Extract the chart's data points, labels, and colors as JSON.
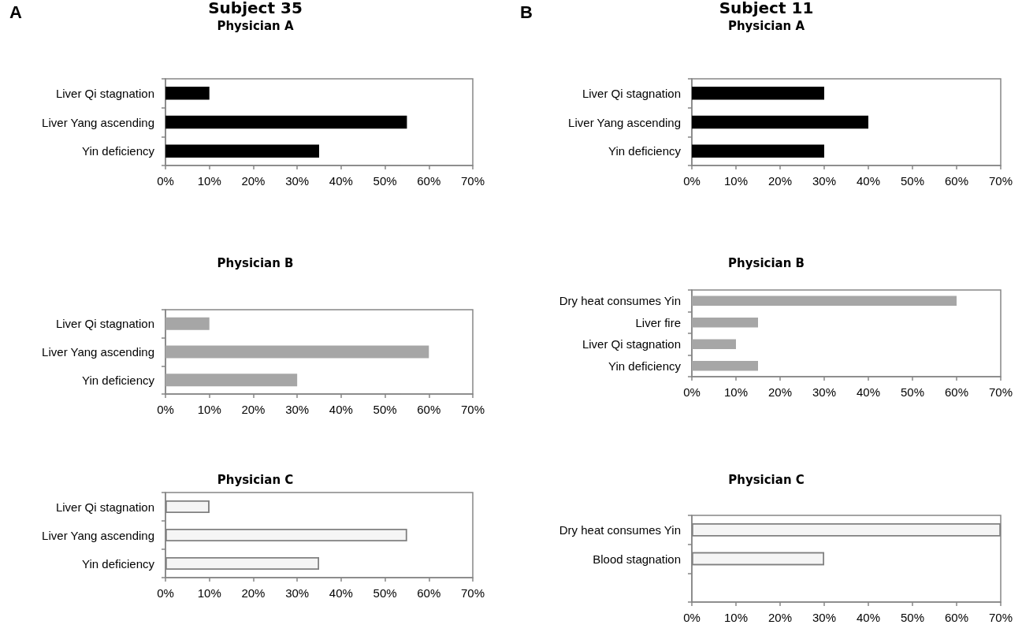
{
  "chart_data": [
    {
      "type": "bar",
      "orientation": "horizontal",
      "title": "Physician A",
      "annotations": [
        "A",
        "Subject 35"
      ],
      "categories": [
        "Liver Qi stagnation",
        "Liver Yang ascending",
        "Yin deficiency"
      ],
      "values": [
        10,
        55,
        35
      ],
      "color": "#000000",
      "xlim": [
        0,
        70
      ],
      "xticks": [
        {
          "value": 0,
          "label": "0%"
        },
        {
          "value": 10,
          "label": "10%"
        },
        {
          "value": 20,
          "label": "20%"
        },
        {
          "value": 30,
          "label": "30%"
        },
        {
          "value": 40,
          "label": "40%"
        },
        {
          "value": 50,
          "label": "50%"
        },
        {
          "value": 60,
          "label": "60%"
        },
        {
          "value": 70,
          "label": "70%"
        }
      ],
      "grid": false
    },
    {
      "type": "bar",
      "orientation": "horizontal",
      "title": "Physician A",
      "annotations": [
        "B",
        "Subject 11"
      ],
      "categories": [
        "Liver Qi stagnation",
        "Liver Yang ascending",
        "Yin deficiency"
      ],
      "values": [
        30,
        40,
        30
      ],
      "color": "#000000",
      "xlim": [
        0,
        70
      ],
      "xticks": [
        {
          "value": 0,
          "label": "0%"
        },
        {
          "value": 10,
          "label": "10%"
        },
        {
          "value": 20,
          "label": "20%"
        },
        {
          "value": 30,
          "label": "30%"
        },
        {
          "value": 40,
          "label": "40%"
        },
        {
          "value": 50,
          "label": "50%"
        },
        {
          "value": 60,
          "label": "60%"
        },
        {
          "value": 70,
          "label": "70%"
        }
      ],
      "grid": false
    },
    {
      "type": "bar",
      "orientation": "horizontal",
      "title": "Physician B",
      "categories": [
        "Liver Qi stagnation",
        "Liver Yang ascending",
        "Yin deficiency"
      ],
      "values": [
        10,
        60,
        30
      ],
      "color": "#a6a6a6",
      "xlim": [
        0,
        70
      ],
      "xticks": [
        {
          "value": 0,
          "label": "0%"
        },
        {
          "value": 10,
          "label": "10%"
        },
        {
          "value": 20,
          "label": "20%"
        },
        {
          "value": 30,
          "label": "30%"
        },
        {
          "value": 40,
          "label": "40%"
        },
        {
          "value": 50,
          "label": "50%"
        },
        {
          "value": 60,
          "label": "60%"
        },
        {
          "value": 70,
          "label": "70%"
        }
      ],
      "grid": false
    },
    {
      "type": "bar",
      "orientation": "horizontal",
      "title": "Physician B",
      "categories": [
        "Dry heat consumes Yin",
        "Liver fire",
        "Liver Qi stagnation",
        "Yin deficiency"
      ],
      "values": [
        60,
        15,
        10,
        15
      ],
      "color": "#a6a6a6",
      "xlim": [
        0,
        70
      ],
      "xticks": [
        {
          "value": 0,
          "label": "0%"
        },
        {
          "value": 10,
          "label": "10%"
        },
        {
          "value": 20,
          "label": "20%"
        },
        {
          "value": 30,
          "label": "30%"
        },
        {
          "value": 40,
          "label": "40%"
        },
        {
          "value": 50,
          "label": "50%"
        },
        {
          "value": 60,
          "label": "60%"
        },
        {
          "value": 70,
          "label": "70%"
        }
      ],
      "grid": false
    },
    {
      "type": "bar",
      "orientation": "horizontal",
      "title": "Physician C",
      "categories": [
        "Liver Qi stagnation",
        "Liver Yang ascending",
        "Yin deficiency"
      ],
      "values": [
        10,
        55,
        35
      ],
      "color": "#f5f5f5",
      "xlim": [
        0,
        70
      ],
      "xticks": [
        {
          "value": 0,
          "label": "0%"
        },
        {
          "value": 10,
          "label": "10%"
        },
        {
          "value": 20,
          "label": "20%"
        },
        {
          "value": 30,
          "label": "30%"
        },
        {
          "value": 40,
          "label": "40%"
        },
        {
          "value": 50,
          "label": "50%"
        },
        {
          "value": 60,
          "label": "60%"
        },
        {
          "value": 70,
          "label": "70%"
        }
      ],
      "grid": false
    },
    {
      "type": "bar",
      "orientation": "horizontal",
      "title": "Physician C",
      "categories": [
        "Dry heat consumes Yin",
        "Blood stagnation",
        null
      ],
      "values": [
        70,
        30,
        null
      ],
      "color": "#f5f5f5",
      "xlim": [
        0,
        70
      ],
      "xticks": [
        {
          "value": 0,
          "label": "0%"
        },
        {
          "value": 10,
          "label": "10%"
        },
        {
          "value": 20,
          "label": "20%"
        },
        {
          "value": 30,
          "label": "30%"
        },
        {
          "value": 40,
          "label": "40%"
        },
        {
          "value": 50,
          "label": "50%"
        },
        {
          "value": 60,
          "label": "60%"
        },
        {
          "value": 70,
          "label": "70%"
        }
      ],
      "grid": false
    }
  ]
}
